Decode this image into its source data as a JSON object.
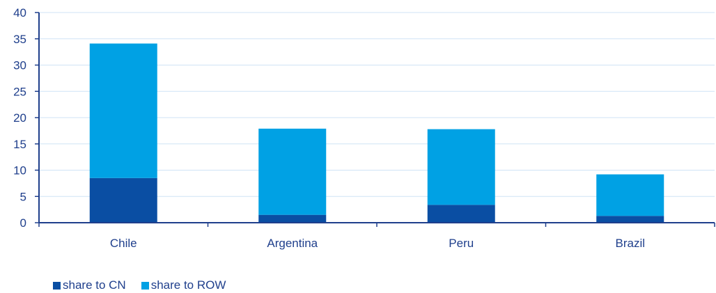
{
  "chart_data": {
    "type": "bar",
    "stacked": true,
    "categories": [
      "Chile",
      "Argentina",
      "Peru",
      "Brazil"
    ],
    "series": [
      {
        "name": "share to CN",
        "values": [
          8.5,
          1.5,
          3.4,
          1.3
        ],
        "color": "#0a4ea3"
      },
      {
        "name": "share to ROW",
        "values": [
          25.6,
          16.4,
          14.4,
          7.9
        ],
        "color": "#00a1e4"
      }
    ],
    "title": "",
    "xlabel": "",
    "ylabel": "",
    "ylim": [
      0,
      40
    ],
    "yticks": [
      0,
      5,
      10,
      15,
      20,
      25,
      30,
      35,
      40
    ],
    "grid": true,
    "legend": "bottom-left"
  }
}
